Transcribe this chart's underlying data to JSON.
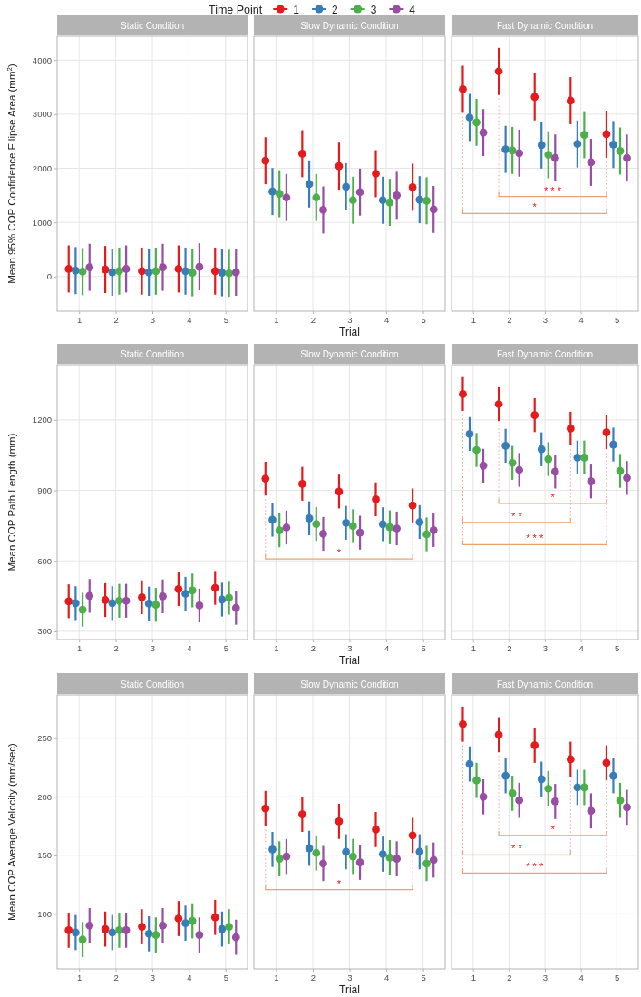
{
  "chart_data": [
    {
      "type": "scatter",
      "title": "Static Condition",
      "ylabel": "Mean 95% COP Confidence Ellipse Area (mm$^{2}$)",
      "legend_title": "Time Point",
      "legend": "top",
      "marker": "circle",
      "grid": true,
      "categories": [
        "1",
        "2",
        "3",
        "4",
        "5"
      ],
      "ylim": [
        -640,
        4440
      ],
      "yticks": [
        0,
        1000,
        2000,
        3000,
        4000
      ],
      "series": [
        {
          "name": "1",
          "color": "#e41a1c",
          "values": [
            140,
            130,
            100,
            140,
            100
          ],
          "errors": [
            435,
            435,
            435,
            435,
            435
          ]
        },
        {
          "name": "2",
          "color": "#377eb8",
          "values": [
            110,
            80,
            80,
            100,
            70
          ],
          "errors": [
            435,
            435,
            435,
            435,
            435
          ]
        },
        {
          "name": "3",
          "color": "#4daf4a",
          "values": [
            90,
            100,
            100,
            70,
            60
          ],
          "errors": [
            435,
            435,
            435,
            435,
            435
          ]
        },
        {
          "name": "4",
          "color": "#984ea3",
          "values": [
            170,
            140,
            170,
            180,
            80
          ],
          "errors": [
            435,
            435,
            435,
            435,
            435
          ]
        }
      ]
    },
    {
      "type": "scatter",
      "title": "Slow Dynamic Condition",
      "xlabel": "Trial",
      "marker": "circle",
      "grid": true,
      "tick_labels": "x",
      "categories": [
        "1",
        "2",
        "3",
        "4",
        "5"
      ],
      "ylim": [
        -640,
        4440
      ],
      "series": [
        {
          "color": "#e41a1c",
          "values": [
            2140,
            2270,
            2040,
            1900,
            1650
          ],
          "errors": [
            435,
            435,
            435,
            435,
            435
          ]
        },
        {
          "color": "#377eb8",
          "values": [
            1570,
            1710,
            1660,
            1410,
            1420
          ],
          "errors": [
            435,
            435,
            435,
            435,
            435
          ]
        },
        {
          "color": "#4daf4a",
          "values": [
            1530,
            1460,
            1410,
            1370,
            1400
          ],
          "errors": [
            435,
            435,
            435,
            435,
            435
          ]
        },
        {
          "color": "#984ea3",
          "values": [
            1460,
            1230,
            1560,
            1500,
            1240
          ],
          "errors": [
            435,
            435,
            435,
            435,
            435
          ]
        }
      ]
    },
    {
      "type": "scatter",
      "title": "Fast Dynamic Condition",
      "marker": "circle",
      "grid": true,
      "tick_labels": "x",
      "categories": [
        "1",
        "2",
        "3",
        "4",
        "5"
      ],
      "ylim": [
        -640,
        4440
      ],
      "annotations": [
        "* * *",
        "*"
      ],
      "series": [
        {
          "color": "#e41a1c",
          "values": [
            3460,
            3790,
            3320,
            3250,
            2630
          ],
          "errors": [
            435,
            435,
            435,
            435,
            435
          ]
        },
        {
          "color": "#377eb8",
          "values": [
            2940,
            2350,
            2430,
            2450,
            2440
          ],
          "errors": [
            435,
            435,
            435,
            435,
            435
          ]
        },
        {
          "color": "#4daf4a",
          "values": [
            2850,
            2330,
            2250,
            2620,
            2320
          ],
          "errors": [
            435,
            435,
            435,
            435,
            435
          ]
        },
        {
          "color": "#984ea3",
          "values": [
            2660,
            2280,
            2190,
            2110,
            2190
          ],
          "errors": [
            435,
            435,
            435,
            435,
            435
          ]
        }
      ]
    },
    {
      "type": "scatter",
      "title": "Static Condition",
      "ylabel": "Mean COP Path Length (mm)",
      "marker": "circle",
      "grid": true,
      "categories": [
        "1",
        "2",
        "3",
        "4",
        "5"
      ],
      "ylim": [
        265,
        1435
      ],
      "yticks": [
        300,
        600,
        900,
        1200
      ],
      "series": [
        {
          "color": "#e41a1c",
          "values": [
            428,
            433,
            445,
            480,
            485
          ],
          "errors": [
            72,
            72,
            72,
            72,
            72
          ]
        },
        {
          "color": "#377eb8",
          "values": [
            420,
            420,
            418,
            460,
            435
          ],
          "errors": [
            72,
            72,
            72,
            72,
            72
          ]
        },
        {
          "color": "#4daf4a",
          "values": [
            392,
            430,
            413,
            474,
            443
          ],
          "errors": [
            72,
            72,
            72,
            72,
            72
          ]
        },
        {
          "color": "#984ea3",
          "values": [
            451,
            430,
            449,
            410,
            400
          ],
          "errors": [
            72,
            72,
            72,
            72,
            72
          ]
        }
      ]
    },
    {
      "type": "scatter",
      "title": "Slow Dynamic Condition",
      "xlabel": "Trial",
      "marker": "circle",
      "grid": true,
      "tick_labels": "x",
      "categories": [
        "1",
        "2",
        "3",
        "4",
        "5"
      ],
      "ylim": [
        265,
        1435
      ],
      "annotations": [
        "*"
      ],
      "series": [
        {
          "color": "#e41a1c",
          "values": [
            950,
            928,
            895,
            862,
            836
          ],
          "errors": [
            72,
            72,
            72,
            72,
            72
          ]
        },
        {
          "color": "#377eb8",
          "values": [
            775,
            781,
            762,
            756,
            765
          ],
          "errors": [
            72,
            72,
            72,
            72,
            72
          ]
        },
        {
          "color": "#4daf4a",
          "values": [
            730,
            757,
            748,
            743,
            713
          ],
          "errors": [
            72,
            72,
            72,
            72,
            72
          ]
        },
        {
          "color": "#984ea3",
          "values": [
            742,
            715,
            720,
            738,
            731
          ],
          "errors": [
            72,
            72,
            72,
            72,
            72
          ]
        }
      ]
    },
    {
      "type": "scatter",
      "title": "Fast Dynamic Condition",
      "marker": "circle",
      "grid": true,
      "tick_labels": "x",
      "categories": [
        "1",
        "2",
        "3",
        "4",
        "5"
      ],
      "ylim": [
        265,
        1435
      ],
      "annotations": [
        "*",
        "* *",
        "* * *"
      ],
      "series": [
        {
          "color": "#e41a1c",
          "values": [
            1310,
            1267,
            1220,
            1163,
            1147
          ],
          "errors": [
            72,
            72,
            72,
            72,
            72
          ]
        },
        {
          "color": "#377eb8",
          "values": [
            1140,
            1090,
            1075,
            1040,
            1095
          ],
          "errors": [
            72,
            72,
            72,
            72,
            72
          ]
        },
        {
          "color": "#4daf4a",
          "values": [
            1072,
            1017,
            1033,
            1040,
            983
          ],
          "errors": [
            72,
            72,
            72,
            72,
            72
          ]
        },
        {
          "color": "#984ea3",
          "values": [
            1005,
            987,
            980,
            938,
            953
          ],
          "errors": [
            72,
            72,
            72,
            72,
            72
          ]
        }
      ]
    },
    {
      "type": "scatter",
      "title": "Static Condition",
      "ylabel": "Mean COP Average Velocity (mm/sec)",
      "marker": "circle",
      "grid": true,
      "categories": [
        "1",
        "2",
        "3",
        "4",
        "5"
      ],
      "ylim": [
        53,
        287
      ],
      "yticks": [
        100,
        150,
        200,
        250
      ],
      "series": [
        {
          "color": "#e41a1c",
          "values": [
            86,
            87,
            89,
            96,
            97
          ],
          "errors": [
            15,
            15,
            15,
            15,
            15
          ]
        },
        {
          "color": "#377eb8",
          "values": [
            84,
            84,
            83,
            92,
            87
          ],
          "errors": [
            15,
            15,
            15,
            15,
            15
          ]
        },
        {
          "color": "#4daf4a",
          "values": [
            78,
            86,
            82,
            94,
            89
          ],
          "errors": [
            15,
            15,
            15,
            15,
            15
          ]
        },
        {
          "color": "#984ea3",
          "values": [
            90,
            86,
            90,
            82,
            80
          ],
          "errors": [
            15,
            15,
            15,
            15,
            15
          ]
        }
      ]
    },
    {
      "type": "scatter",
      "title": "Slow Dynamic Condition",
      "xlabel": "Trial",
      "marker": "circle",
      "grid": true,
      "tick_labels": "x",
      "categories": [
        "1",
        "2",
        "3",
        "4",
        "5"
      ],
      "ylim": [
        53,
        287
      ],
      "annotations": [
        "*"
      ],
      "series": [
        {
          "color": "#e41a1c",
          "values": [
            190,
            185,
            179,
            172,
            167
          ],
          "errors": [
            15,
            15,
            15,
            15,
            15
          ]
        },
        {
          "color": "#377eb8",
          "values": [
            155,
            156,
            153,
            151,
            153
          ],
          "errors": [
            15,
            15,
            15,
            15,
            15
          ]
        },
        {
          "color": "#4daf4a",
          "values": [
            147,
            152,
            149,
            148,
            143
          ],
          "errors": [
            15,
            15,
            15,
            15,
            15
          ]
        },
        {
          "color": "#984ea3",
          "values": [
            149,
            143,
            144,
            147,
            146
          ],
          "errors": [
            15,
            15,
            15,
            15,
            15
          ]
        }
      ]
    },
    {
      "type": "scatter",
      "title": "Fast Dynamic Condition",
      "marker": "circle",
      "grid": true,
      "tick_labels": "x",
      "categories": [
        "1",
        "2",
        "3",
        "4",
        "5"
      ],
      "ylim": [
        53,
        287
      ],
      "annotations": [
        "*",
        "* *",
        "* * *"
      ],
      "series": [
        {
          "color": "#e41a1c",
          "values": [
            262,
            253,
            244,
            232,
            229
          ],
          "errors": [
            15,
            15,
            15,
            15,
            15
          ]
        },
        {
          "color": "#377eb8",
          "values": [
            228,
            218,
            215,
            208,
            218
          ],
          "errors": [
            15,
            15,
            15,
            15,
            15
          ]
        },
        {
          "color": "#4daf4a",
          "values": [
            214,
            203,
            207,
            208,
            197
          ],
          "errors": [
            15,
            15,
            15,
            15,
            15
          ]
        },
        {
          "color": "#984ea3",
          "values": [
            200,
            197,
            196,
            188,
            191
          ],
          "errors": [
            15,
            15,
            15,
            15,
            15
          ]
        }
      ]
    }
  ]
}
